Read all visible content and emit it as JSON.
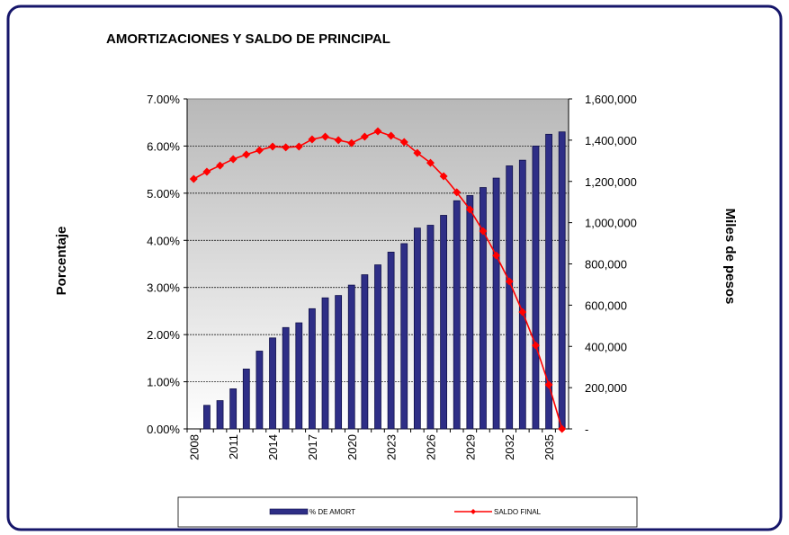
{
  "chart_data": {
    "type": "bar",
    "title": "AMORTIZACIONES Y SALDO DE PRINCIPAL",
    "y_label": "Porcentaje",
    "y2_label": "Miles de pesos",
    "categories": [
      "2008",
      null,
      null,
      "2011",
      null,
      null,
      "2014",
      null,
      null,
      "2017",
      null,
      null,
      "2020",
      null,
      null,
      "2023",
      null,
      null,
      "2026",
      null,
      null,
      "2029",
      null,
      null,
      "2032",
      null,
      null,
      "2035",
      null
    ],
    "series": [
      {
        "name": "% DE AMORT",
        "type": "bar",
        "color": "#2e2e86",
        "axis": "y",
        "values": [
          0,
          0.5,
          0.6,
          0.85,
          1.27,
          1.65,
          1.93,
          2.15,
          2.25,
          2.55,
          2.78,
          2.83,
          3.05,
          3.27,
          3.48,
          3.75,
          3.93,
          4.26,
          4.32,
          4.53,
          4.84,
          4.95,
          5.12,
          5.32,
          5.58,
          5.7,
          6.0,
          6.25,
          6.3
        ]
      },
      {
        "name": "SALDO FINAL",
        "type": "line",
        "color": "#ff0000",
        "axis": "y2",
        "values": [
          1212000,
          1247000,
          1277000,
          1308000,
          1330000,
          1351000,
          1369000,
          1365000,
          1369000,
          1404000,
          1417000,
          1400000,
          1386000,
          1417000,
          1443000,
          1421000,
          1391000,
          1338000,
          1290000,
          1225000,
          1147000,
          1064000,
          959000,
          841000,
          715000,
          567000,
          405000,
          214000,
          0
        ]
      }
    ],
    "ylim": [
      0,
      7
    ],
    "yticks": [
      {
        "value": 0,
        "label": "0.00%"
      },
      {
        "value": 1,
        "label": "1.00%"
      },
      {
        "value": 2,
        "label": "2.00%"
      },
      {
        "value": 3,
        "label": "3.00%"
      },
      {
        "value": 4,
        "label": "4.00%"
      },
      {
        "value": 5,
        "label": "5.00%"
      },
      {
        "value": 6,
        "label": "6.00%"
      },
      {
        "value": 7,
        "label": "7.00%"
      }
    ],
    "y2lim": [
      0,
      1600000
    ],
    "y2ticks": [
      {
        "value": 0,
        "label": "-"
      },
      {
        "value": 200000,
        "label": "200,000"
      },
      {
        "value": 400000,
        "label": "400,000"
      },
      {
        "value": 600000,
        "label": "600,000"
      },
      {
        "value": 800000,
        "label": "800,000"
      },
      {
        "value": 1000000,
        "label": "1,000,000"
      },
      {
        "value": 1200000,
        "label": "1,200,000"
      },
      {
        "value": 1400000,
        "label": "1,400,000"
      },
      {
        "value": 1600000,
        "label": "1,600,000"
      }
    ],
    "grid": true
  }
}
